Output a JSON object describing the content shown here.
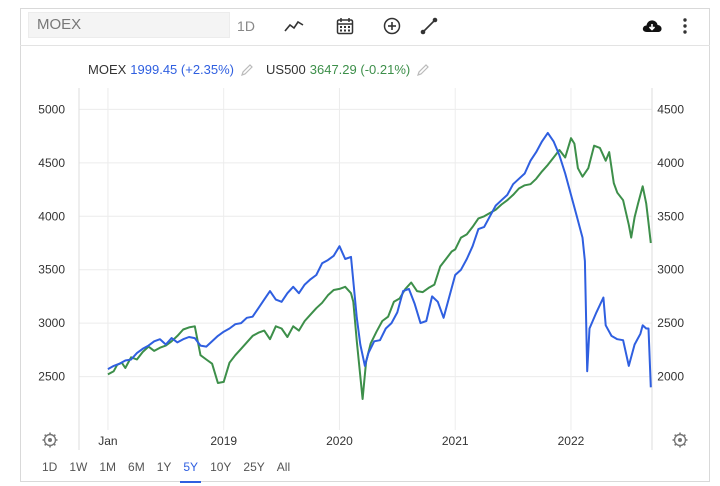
{
  "toolbar": {
    "symbol_placeholder": "MOEX",
    "interval_label": "1D",
    "icons": [
      "line-chart-icon",
      "calendar-icon",
      "add-compare-icon",
      "draw-line-icon",
      "download-icon",
      "more-vertical-icon"
    ]
  },
  "legend": [
    {
      "symbol": "MOEX",
      "value": "1999.45 (+2.35%)",
      "color": "#2f5fe0"
    },
    {
      "symbol": "US500",
      "value": "3647.29 (-0.21%)",
      "color": "#3d8f4a"
    }
  ],
  "ranges": [
    "1D",
    "1W",
    "1M",
    "6M",
    "1Y",
    "5Y",
    "10Y",
    "25Y",
    "All"
  ],
  "active_range": "5Y",
  "chart_data": {
    "type": "line",
    "x_tick_labels": [
      "Jan",
      "2019",
      "2020",
      "2021",
      "2022"
    ],
    "y_left": {
      "ticks": [
        "2500",
        "3000",
        "3500",
        "4000",
        "4500",
        "5000"
      ],
      "range": [
        2000,
        5200
      ]
    },
    "y_right": {
      "ticks": [
        "2000",
        "2500",
        "3000",
        "3500",
        "4000",
        "4500"
      ],
      "range": [
        1500,
        4700
      ]
    },
    "series": [
      {
        "name": "MOEX",
        "axis": "left",
        "color": "#2f5fe0",
        "points": [
          [
            2018.0,
            2570
          ],
          [
            2018.05,
            2600
          ],
          [
            2018.1,
            2620
          ],
          [
            2018.15,
            2650
          ],
          [
            2018.2,
            2660
          ],
          [
            2018.25,
            2720
          ],
          [
            2018.3,
            2760
          ],
          [
            2018.35,
            2790
          ],
          [
            2018.4,
            2830
          ],
          [
            2018.45,
            2850
          ],
          [
            2018.5,
            2800
          ],
          [
            2018.55,
            2860
          ],
          [
            2018.6,
            2820
          ],
          [
            2018.65,
            2850
          ],
          [
            2018.7,
            2870
          ],
          [
            2018.75,
            2860
          ],
          [
            2018.8,
            2790
          ],
          [
            2018.85,
            2780
          ],
          [
            2018.9,
            2830
          ],
          [
            2018.95,
            2880
          ],
          [
            2019.0,
            2920
          ],
          [
            2019.05,
            2950
          ],
          [
            2019.1,
            2990
          ],
          [
            2019.15,
            3000
          ],
          [
            2019.2,
            3050
          ],
          [
            2019.25,
            3060
          ],
          [
            2019.3,
            3140
          ],
          [
            2019.35,
            3220
          ],
          [
            2019.4,
            3300
          ],
          [
            2019.45,
            3220
          ],
          [
            2019.5,
            3200
          ],
          [
            2019.55,
            3280
          ],
          [
            2019.6,
            3340
          ],
          [
            2019.65,
            3280
          ],
          [
            2019.7,
            3360
          ],
          [
            2019.75,
            3410
          ],
          [
            2019.8,
            3450
          ],
          [
            2019.85,
            3560
          ],
          [
            2019.9,
            3590
          ],
          [
            2019.95,
            3630
          ],
          [
            2020.0,
            3720
          ],
          [
            2020.05,
            3600
          ],
          [
            2020.1,
            3620
          ],
          [
            2020.15,
            3050
          ],
          [
            2020.18,
            2800
          ],
          [
            2020.22,
            2600
          ],
          [
            2020.25,
            2720
          ],
          [
            2020.3,
            2830
          ],
          [
            2020.35,
            2840
          ],
          [
            2020.4,
            2950
          ],
          [
            2020.45,
            3000
          ],
          [
            2020.5,
            3100
          ],
          [
            2020.55,
            3300
          ],
          [
            2020.6,
            3320
          ],
          [
            2020.65,
            3180
          ],
          [
            2020.7,
            3000
          ],
          [
            2020.75,
            3020
          ],
          [
            2020.8,
            3250
          ],
          [
            2020.85,
            3200
          ],
          [
            2020.9,
            3050
          ],
          [
            2020.95,
            3250
          ],
          [
            2021.0,
            3450
          ],
          [
            2021.05,
            3500
          ],
          [
            2021.1,
            3600
          ],
          [
            2021.15,
            3720
          ],
          [
            2021.2,
            3880
          ],
          [
            2021.25,
            3900
          ],
          [
            2021.3,
            4000
          ],
          [
            2021.35,
            4100
          ],
          [
            2021.4,
            4150
          ],
          [
            2021.45,
            4200
          ],
          [
            2021.5,
            4300
          ],
          [
            2021.55,
            4350
          ],
          [
            2021.6,
            4400
          ],
          [
            2021.65,
            4520
          ],
          [
            2021.7,
            4600
          ],
          [
            2021.75,
            4700
          ],
          [
            2021.8,
            4780
          ],
          [
            2021.85,
            4700
          ],
          [
            2021.9,
            4570
          ],
          [
            2021.95,
            4400
          ],
          [
            2022.0,
            4200
          ],
          [
            2022.05,
            4000
          ],
          [
            2022.1,
            3800
          ],
          [
            2022.12,
            3580
          ],
          [
            2022.14,
            2550
          ],
          [
            2022.16,
            2950
          ],
          [
            2022.22,
            3100
          ],
          [
            2022.28,
            3240
          ],
          [
            2022.3,
            2980
          ],
          [
            2022.35,
            2880
          ],
          [
            2022.4,
            2850
          ],
          [
            2022.45,
            2840
          ],
          [
            2022.5,
            2600
          ],
          [
            2022.55,
            2800
          ],
          [
            2022.6,
            2900
          ],
          [
            2022.62,
            2980
          ],
          [
            2022.65,
            2950
          ],
          [
            2022.67,
            2950
          ],
          [
            2022.69,
            2400
          ]
        ]
      },
      {
        "name": "US500",
        "axis": "right",
        "color": "#3d8f4a",
        "points": [
          [
            2018.0,
            2020
          ],
          [
            2018.05,
            2050
          ],
          [
            2018.08,
            2110
          ],
          [
            2018.12,
            2130
          ],
          [
            2018.15,
            2080
          ],
          [
            2018.2,
            2180
          ],
          [
            2018.25,
            2160
          ],
          [
            2018.3,
            2230
          ],
          [
            2018.35,
            2280
          ],
          [
            2018.4,
            2240
          ],
          [
            2018.45,
            2270
          ],
          [
            2018.5,
            2290
          ],
          [
            2018.55,
            2330
          ],
          [
            2018.6,
            2380
          ],
          [
            2018.65,
            2440
          ],
          [
            2018.7,
            2460
          ],
          [
            2018.75,
            2470
          ],
          [
            2018.8,
            2200
          ],
          [
            2018.85,
            2160
          ],
          [
            2018.9,
            2120
          ],
          [
            2018.95,
            1940
          ],
          [
            2019.0,
            1950
          ],
          [
            2019.05,
            2130
          ],
          [
            2019.1,
            2200
          ],
          [
            2019.15,
            2260
          ],
          [
            2019.2,
            2320
          ],
          [
            2019.25,
            2380
          ],
          [
            2019.3,
            2410
          ],
          [
            2019.35,
            2430
          ],
          [
            2019.4,
            2350
          ],
          [
            2019.45,
            2470
          ],
          [
            2019.5,
            2450
          ],
          [
            2019.55,
            2370
          ],
          [
            2019.6,
            2470
          ],
          [
            2019.65,
            2430
          ],
          [
            2019.7,
            2520
          ],
          [
            2019.75,
            2580
          ],
          [
            2019.8,
            2640
          ],
          [
            2019.85,
            2690
          ],
          [
            2019.9,
            2760
          ],
          [
            2019.95,
            2810
          ],
          [
            2020.0,
            2820
          ],
          [
            2020.05,
            2840
          ],
          [
            2020.1,
            2780
          ],
          [
            2020.12,
            2700
          ],
          [
            2020.15,
            2330
          ],
          [
            2020.2,
            1790
          ],
          [
            2020.23,
            2140
          ],
          [
            2020.27,
            2310
          ],
          [
            2020.32,
            2420
          ],
          [
            2020.37,
            2520
          ],
          [
            2020.42,
            2560
          ],
          [
            2020.47,
            2700
          ],
          [
            2020.52,
            2730
          ],
          [
            2020.57,
            2820
          ],
          [
            2020.62,
            2880
          ],
          [
            2020.67,
            2800
          ],
          [
            2020.72,
            2790
          ],
          [
            2020.77,
            2830
          ],
          [
            2020.82,
            2860
          ],
          [
            2020.87,
            3030
          ],
          [
            2020.92,
            3100
          ],
          [
            2020.97,
            3170
          ],
          [
            2021.0,
            3190
          ],
          [
            2021.05,
            3300
          ],
          [
            2021.1,
            3330
          ],
          [
            2021.15,
            3400
          ],
          [
            2021.2,
            3480
          ],
          [
            2021.25,
            3500
          ],
          [
            2021.3,
            3530
          ],
          [
            2021.35,
            3560
          ],
          [
            2021.4,
            3610
          ],
          [
            2021.45,
            3650
          ],
          [
            2021.5,
            3700
          ],
          [
            2021.55,
            3760
          ],
          [
            2021.6,
            3790
          ],
          [
            2021.65,
            3800
          ],
          [
            2021.7,
            3850
          ],
          [
            2021.75,
            3920
          ],
          [
            2021.8,
            3980
          ],
          [
            2021.85,
            4050
          ],
          [
            2021.9,
            4120
          ],
          [
            2021.95,
            4050
          ],
          [
            2022.0,
            4230
          ],
          [
            2022.03,
            4180
          ],
          [
            2022.06,
            3950
          ],
          [
            2022.1,
            3870
          ],
          [
            2022.15,
            3950
          ],
          [
            2022.2,
            4160
          ],
          [
            2022.25,
            4140
          ],
          [
            2022.3,
            4020
          ],
          [
            2022.33,
            4100
          ],
          [
            2022.37,
            3810
          ],
          [
            2022.4,
            3720
          ],
          [
            2022.45,
            3650
          ],
          [
            2022.5,
            3420
          ],
          [
            2022.52,
            3300
          ],
          [
            2022.55,
            3490
          ],
          [
            2022.58,
            3620
          ],
          [
            2022.62,
            3780
          ],
          [
            2022.65,
            3620
          ],
          [
            2022.67,
            3440
          ],
          [
            2022.69,
            3250
          ]
        ]
      }
    ]
  }
}
